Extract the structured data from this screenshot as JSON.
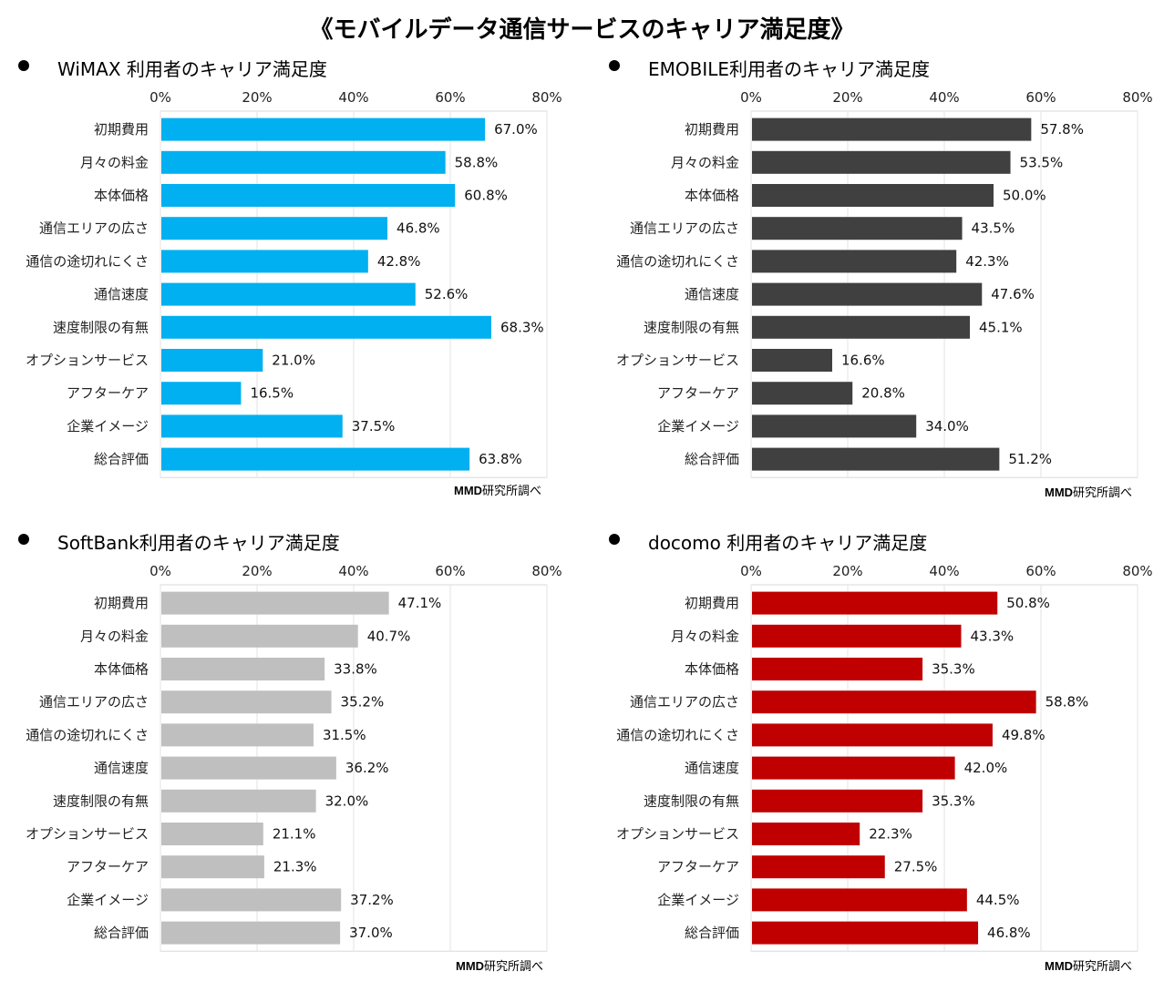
{
  "title": "《モバイルデータ通信サービスのキャリア満足度》",
  "source_note": "MMD研究所調べ",
  "source_brand": "MMD",
  "source_rest": "研究所調べ",
  "chart_data": [
    {
      "type": "bar",
      "title": "WiMAX 利用者のキャリア満足度",
      "color": "#00B0F0",
      "categories": [
        "初期費用",
        "月々の料金",
        "本体価格",
        "通信エリアの広さ",
        "通信の途切れにくさ",
        "通信速度",
        "速度制限の有無",
        "オプションサービス",
        "アフターケア",
        "企業イメージ",
        "総合評価"
      ],
      "values": [
        67.0,
        58.8,
        60.8,
        46.8,
        42.8,
        52.6,
        68.3,
        21.0,
        16.5,
        37.5,
        63.8
      ],
      "value_labels": [
        "67.0%",
        "58.8%",
        "60.8%",
        "46.8%",
        "42.8%",
        "52.6%",
        "68.3%",
        "21.0%",
        "16.5%",
        "37.5%",
        "63.8%"
      ],
      "xticks": [
        "0%",
        "20%",
        "40%",
        "60%",
        "80%"
      ],
      "xlim": [
        0,
        80
      ],
      "grid": true,
      "orientation": "horizontal"
    },
    {
      "type": "bar",
      "title": "EMOBILE利用者のキャリア満足度",
      "color": "#404040",
      "categories": [
        "初期費用",
        "月々の料金",
        "本体価格",
        "通信エリアの広さ",
        "通信の途切れにくさ",
        "通信速度",
        "速度制限の有無",
        "オプションサービス",
        "アフターケア",
        "企業イメージ",
        "総合評価"
      ],
      "values": [
        57.8,
        53.5,
        50.0,
        43.5,
        42.3,
        47.6,
        45.1,
        16.6,
        20.8,
        34.0,
        51.2
      ],
      "value_labels": [
        "57.8%",
        "53.5%",
        "50.0%",
        "43.5%",
        "42.3%",
        "47.6%",
        "45.1%",
        "16.6%",
        "20.8%",
        "34.0%",
        "51.2%"
      ],
      "xticks": [
        "0%",
        "20%",
        "40%",
        "60%",
        "80%"
      ],
      "xlim": [
        0,
        80
      ],
      "grid": true,
      "orientation": "horizontal"
    },
    {
      "type": "bar",
      "title": "SoftBank利用者のキャリア満足度",
      "color": "#BFBFBF",
      "categories": [
        "初期費用",
        "月々の料金",
        "本体価格",
        "通信エリアの広さ",
        "通信の途切れにくさ",
        "通信速度",
        "速度制限の有無",
        "オプションサービス",
        "アフターケア",
        "企業イメージ",
        "総合評価"
      ],
      "values": [
        47.1,
        40.7,
        33.8,
        35.2,
        31.5,
        36.2,
        32.0,
        21.1,
        21.3,
        37.2,
        37.0
      ],
      "value_labels": [
        "47.1%",
        "40.7%",
        "33.8%",
        "35.2%",
        "31.5%",
        "36.2%",
        "32.0%",
        "21.1%",
        "21.3%",
        "37.2%",
        "37.0%"
      ],
      "xticks": [
        "0%",
        "20%",
        "40%",
        "60%",
        "80%"
      ],
      "xlim": [
        0,
        80
      ],
      "grid": true,
      "orientation": "horizontal"
    },
    {
      "type": "bar",
      "title": "docomo 利用者のキャリア満足度",
      "color": "#C00000",
      "categories": [
        "初期費用",
        "月々の料金",
        "本体価格",
        "通信エリアの広さ",
        "通信の途切れにくさ",
        "通信速度",
        "速度制限の有無",
        "オプションサービス",
        "アフターケア",
        "企業イメージ",
        "総合評価"
      ],
      "values": [
        50.8,
        43.3,
        35.3,
        58.8,
        49.8,
        42.0,
        35.3,
        22.3,
        27.5,
        44.5,
        46.8
      ],
      "value_labels": [
        "50.8%",
        "43.3%",
        "35.3%",
        "58.8%",
        "49.8%",
        "42.0%",
        "35.3%",
        "22.3%",
        "27.5%",
        "44.5%",
        "46.8%"
      ],
      "xticks": [
        "0%",
        "20%",
        "40%",
        "60%",
        "80%"
      ],
      "xlim": [
        0,
        80
      ],
      "grid": true,
      "orientation": "horizontal"
    }
  ]
}
